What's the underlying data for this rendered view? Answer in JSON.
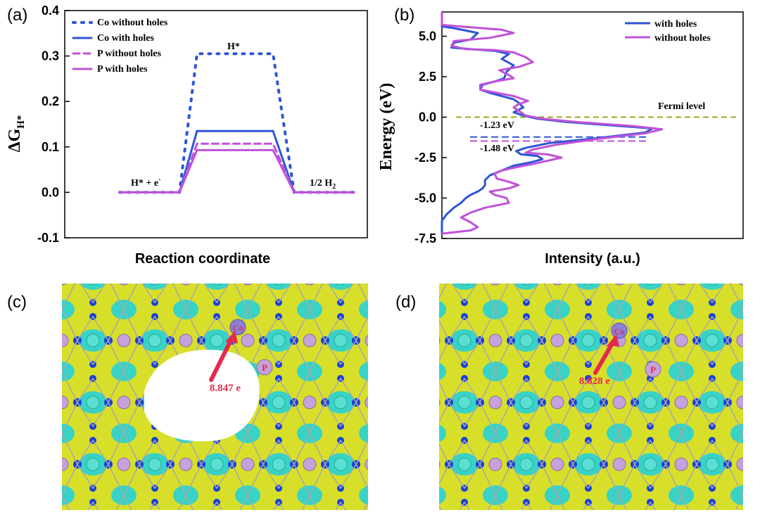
{
  "panels": {
    "a": "(a)",
    "b": "(b)",
    "c": "(c)",
    "d": "(d)"
  },
  "colors": {
    "co": "#2e55d6",
    "p": "#c052d8",
    "fermi": "#9aa81e",
    "surface_yellow": "#d8df2a",
    "surface_cyan": "#38d2c6",
    "atom_blue": "#1a40d8",
    "atom_purple": "#c5a2dc",
    "annotation_red": "#e62a4d"
  },
  "chart_data": [
    {
      "id": "a",
      "type": "line",
      "xlabel": "Reaction coordinate",
      "ylabel_main": "ΔG",
      "ylabel_sub": "H*",
      "ylim": [
        -0.1,
        0.4
      ],
      "yticks": [
        "-0.1",
        "0.0",
        "0.1",
        "0.2",
        "0.3",
        "0.4"
      ],
      "ytick_values": [
        -0.1,
        0.0,
        0.1,
        0.2,
        0.3,
        0.4
      ],
      "states": [
        "H* + e⁻",
        "H*",
        "1/2 H₂"
      ],
      "state_labels": {
        "start": "H* + e",
        "start_sup": "-",
        "middle": "H*",
        "end": "1/2 H",
        "end_sub": "2"
      },
      "legend_position": "top-left",
      "series": [
        {
          "name": "Co without holes",
          "style": "dotted",
          "color": "co",
          "values": [
            0.0,
            0.305,
            0.0
          ]
        },
        {
          "name": "Co with holes",
          "style": "solid",
          "color": "co",
          "values": [
            0.0,
            0.135,
            0.0
          ]
        },
        {
          "name": "P without holes",
          "style": "dashed",
          "color": "p",
          "values": [
            0.0,
            0.107,
            0.0
          ]
        },
        {
          "name": "P with holes",
          "style": "solid",
          "color": "p",
          "values": [
            0.0,
            0.093,
            0.0
          ]
        }
      ]
    },
    {
      "id": "b",
      "type": "line",
      "xlabel": "Intensity (a.u.)",
      "ylabel": "Energy (eV)",
      "ylim": [
        -7.5,
        6.5
      ],
      "yticks": [
        "5.0",
        "2.5",
        "0.0",
        "-2.5",
        "-5.0",
        "-7.5"
      ],
      "ytick_values": [
        5.0,
        2.5,
        0.0,
        -2.5,
        -5.0,
        -7.5
      ],
      "legend_position": "top-right",
      "fermi_label": "Fermi level",
      "fermi_energy": 0.0,
      "annotations": [
        {
          "text": "-1.23 eV",
          "energy": -1.23,
          "color": "co"
        },
        {
          "text": "-1.48 eV",
          "energy": -1.48,
          "color": "p"
        }
      ],
      "series": [
        {
          "name": "with holes",
          "color": "co",
          "points": [
            [
              0,
              6.5
            ],
            [
              0,
              5.6
            ],
            [
              0.05,
              5.5
            ],
            [
              0.15,
              5.2
            ],
            [
              0.12,
              4.8
            ],
            [
              0.05,
              4.6
            ],
            [
              0.04,
              4.3
            ],
            [
              0.12,
              4.2
            ],
            [
              0.22,
              4.1
            ],
            [
              0.28,
              3.9
            ],
            [
              0.25,
              3.6
            ],
            [
              0.3,
              3.2
            ],
            [
              0.27,
              2.8
            ],
            [
              0.26,
              2.4
            ],
            [
              0.22,
              2.2
            ],
            [
              0.17,
              2.0
            ],
            [
              0.16,
              1.7
            ],
            [
              0.2,
              1.5
            ],
            [
              0.25,
              1.3
            ],
            [
              0.3,
              1.1
            ],
            [
              0.32,
              0.9
            ],
            [
              0.34,
              0.6
            ],
            [
              0.3,
              0.3
            ],
            [
              0.34,
              0.1
            ],
            [
              0.4,
              -0.1
            ],
            [
              0.52,
              -0.3
            ],
            [
              0.75,
              -0.55
            ],
            [
              0.88,
              -0.7
            ],
            [
              0.85,
              -0.95
            ],
            [
              0.65,
              -1.3
            ],
            [
              0.45,
              -1.6
            ],
            [
              0.35,
              -1.9
            ],
            [
              0.31,
              -2.1
            ],
            [
              0.33,
              -2.3
            ],
            [
              0.4,
              -2.4
            ],
            [
              0.42,
              -2.6
            ],
            [
              0.37,
              -2.8
            ],
            [
              0.3,
              -3.0
            ],
            [
              0.25,
              -3.3
            ],
            [
              0.2,
              -3.6
            ],
            [
              0.18,
              -3.9
            ],
            [
              0.18,
              -4.2
            ],
            [
              0.17,
              -4.4
            ],
            [
              0.15,
              -4.6
            ],
            [
              0.12,
              -4.8
            ],
            [
              0.1,
              -5.0
            ],
            [
              0.08,
              -5.3
            ],
            [
              0.05,
              -5.6
            ],
            [
              0.02,
              -6.0
            ],
            [
              0.0,
              -6.4
            ],
            [
              0.0,
              -7.0
            ],
            [
              0.0,
              -7.2
            ]
          ]
        },
        {
          "name": "without holes",
          "color": "p",
          "points": [
            [
              0,
              6.5
            ],
            [
              0,
              5.7
            ],
            [
              0.08,
              5.6
            ],
            [
              0.25,
              5.4
            ],
            [
              0.3,
              5.2
            ],
            [
              0.2,
              4.9
            ],
            [
              0.05,
              4.7
            ],
            [
              0.04,
              4.4
            ],
            [
              0.1,
              4.2
            ],
            [
              0.22,
              4.15
            ],
            [
              0.3,
              4.0
            ],
            [
              0.35,
              3.7
            ],
            [
              0.38,
              3.4
            ],
            [
              0.32,
              3.1
            ],
            [
              0.24,
              2.9
            ],
            [
              0.28,
              2.6
            ],
            [
              0.3,
              2.4
            ],
            [
              0.22,
              2.2
            ],
            [
              0.16,
              2.0
            ],
            [
              0.16,
              1.7
            ],
            [
              0.23,
              1.5
            ],
            [
              0.3,
              1.3
            ],
            [
              0.36,
              1.0
            ],
            [
              0.32,
              0.8
            ],
            [
              0.3,
              0.6
            ],
            [
              0.33,
              0.3
            ],
            [
              0.35,
              0.1
            ],
            [
              0.42,
              -0.1
            ],
            [
              0.56,
              -0.3
            ],
            [
              0.8,
              -0.55
            ],
            [
              0.92,
              -0.75
            ],
            [
              0.85,
              -1.0
            ],
            [
              0.65,
              -1.35
            ],
            [
              0.48,
              -1.7
            ],
            [
              0.38,
              -2.0
            ],
            [
              0.35,
              -2.2
            ],
            [
              0.44,
              -2.3
            ],
            [
              0.5,
              -2.5
            ],
            [
              0.44,
              -2.7
            ],
            [
              0.38,
              -2.9
            ],
            [
              0.31,
              -3.1
            ],
            [
              0.25,
              -3.3
            ],
            [
              0.22,
              -3.5
            ],
            [
              0.23,
              -3.8
            ],
            [
              0.28,
              -4.0
            ],
            [
              0.32,
              -4.2
            ],
            [
              0.28,
              -4.4
            ],
            [
              0.2,
              -4.6
            ],
            [
              0.22,
              -4.8
            ],
            [
              0.27,
              -5.0
            ],
            [
              0.28,
              -5.3
            ],
            [
              0.18,
              -5.6
            ],
            [
              0.12,
              -5.9
            ],
            [
              0.08,
              -6.2
            ],
            [
              0.12,
              -6.5
            ],
            [
              0.15,
              -6.8
            ],
            [
              0.12,
              -7.0
            ],
            [
              0.0,
              -7.2
            ]
          ]
        }
      ]
    }
  ],
  "structure_panels": {
    "c": {
      "site_co": "Co",
      "site_p": "P",
      "charge": "8.847 e",
      "has_hole": true
    },
    "d": {
      "site_co": "Co",
      "site_p": "P",
      "charge": "8.828 e",
      "has_hole": false
    }
  }
}
